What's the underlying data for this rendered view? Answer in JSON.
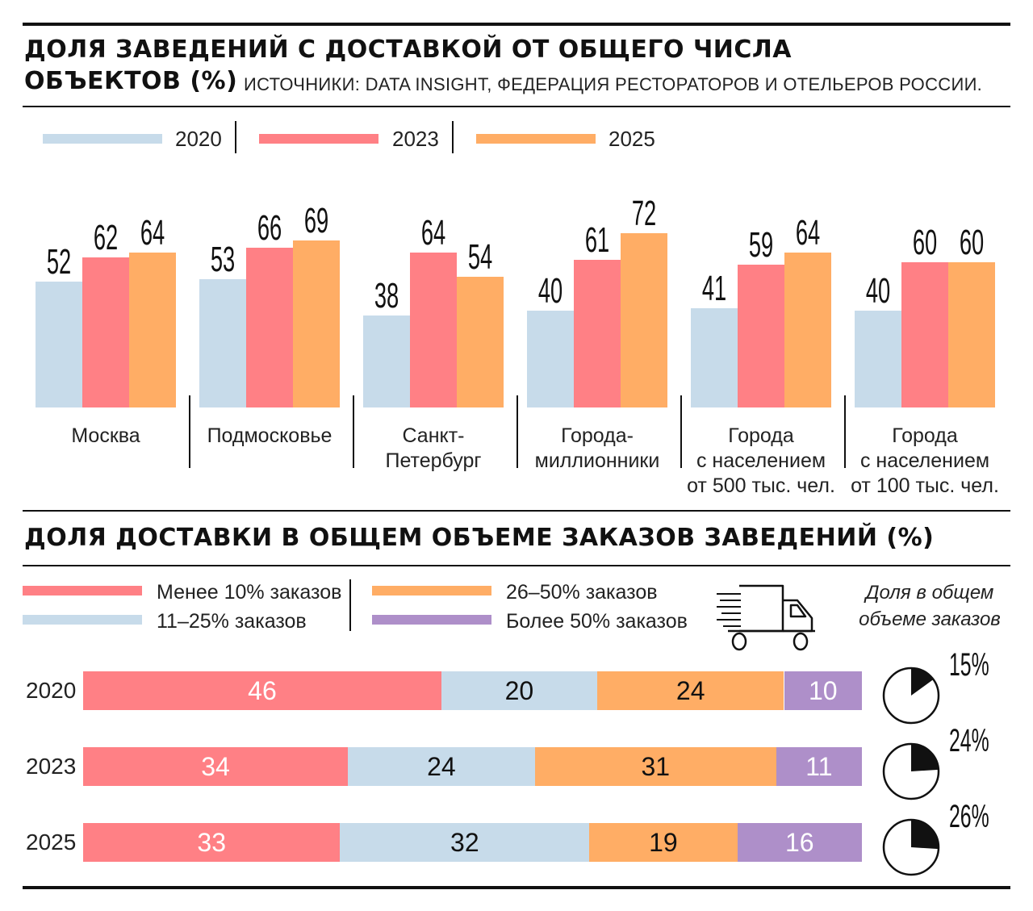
{
  "header": {
    "title_line1": "ДОЛЯ ЗАВЕДЕНИЙ С ДОСТАВКОЙ ОТ ОБЩЕГО ЧИСЛА",
    "title_line2": "ОБЪЕКТОВ (%)",
    "source": "ИСТОЧНИКИ: DATA INSIGHT, ФЕДЕРАЦИЯ РЕСТОРАТОРОВ И ОТЕЛЬЕРОВ РОССИИ."
  },
  "section2": {
    "title": "ДОЛЯ ДОСТАВКИ В ОБЩЕМ ОБЪЕМЕ ЗАКАЗОВ ЗАВЕДЕНИЙ (%)",
    "share_title": "Доля в общем объеме заказов"
  },
  "colors": {
    "y2020": "#c7dbea",
    "y2023": "#ff8085",
    "y2025": "#ffad65",
    "purple": "#ae8fc9",
    "rule": "#111111"
  },
  "chart_data": [
    {
      "type": "bar",
      "title": "ДОЛЯ ЗАВЕДЕНИЙ С ДОСТАВКОЙ ОТ ОБЩЕГО ЧИСЛА ОБЪЕКТОВ (%)",
      "categories": [
        "Москва",
        "Подмосковье",
        "Санкт-\nПетербург",
        "Города-\nмиллионники",
        "Города\nс населением\nот 500 тыс. чел.",
        "Города\nс населением\nот 100 тыс. чел."
      ],
      "series": [
        {
          "name": "2020",
          "values": [
            52,
            53,
            38,
            40,
            41,
            40
          ]
        },
        {
          "name": "2023",
          "values": [
            62,
            66,
            64,
            61,
            59,
            60
          ]
        },
        {
          "name": "2025",
          "values": [
            64,
            69,
            54,
            72,
            64,
            60
          ]
        }
      ],
      "legend": "top-left",
      "grid": false,
      "xlabel": "",
      "ylabel": ""
    },
    {
      "type": "bar",
      "stacked": true,
      "orientation": "horizontal",
      "title": "ДОЛЯ ДОСТАВКИ В ОБЩЕМ ОБЪЕМЕ ЗАКАЗОВ ЗАВЕДЕНИЙ (%)",
      "categories": [
        "2020",
        "2023",
        "2025"
      ],
      "series": [
        {
          "name": "Менее 10% заказов",
          "values": [
            46,
            34,
            33
          ]
        },
        {
          "name": "11–25% заказов",
          "values": [
            20,
            24,
            32
          ]
        },
        {
          "name": "26–50% заказов",
          "values": [
            24,
            31,
            19
          ]
        },
        {
          "name": "Более 50% заказов",
          "values": [
            10,
            11,
            16
          ]
        }
      ],
      "share_of_orders": {
        "labels": [
          "15%",
          "24%",
          "26%"
        ],
        "values": [
          15,
          24,
          26
        ]
      },
      "legend": "top-left",
      "xlabel": "",
      "ylabel": ""
    }
  ]
}
